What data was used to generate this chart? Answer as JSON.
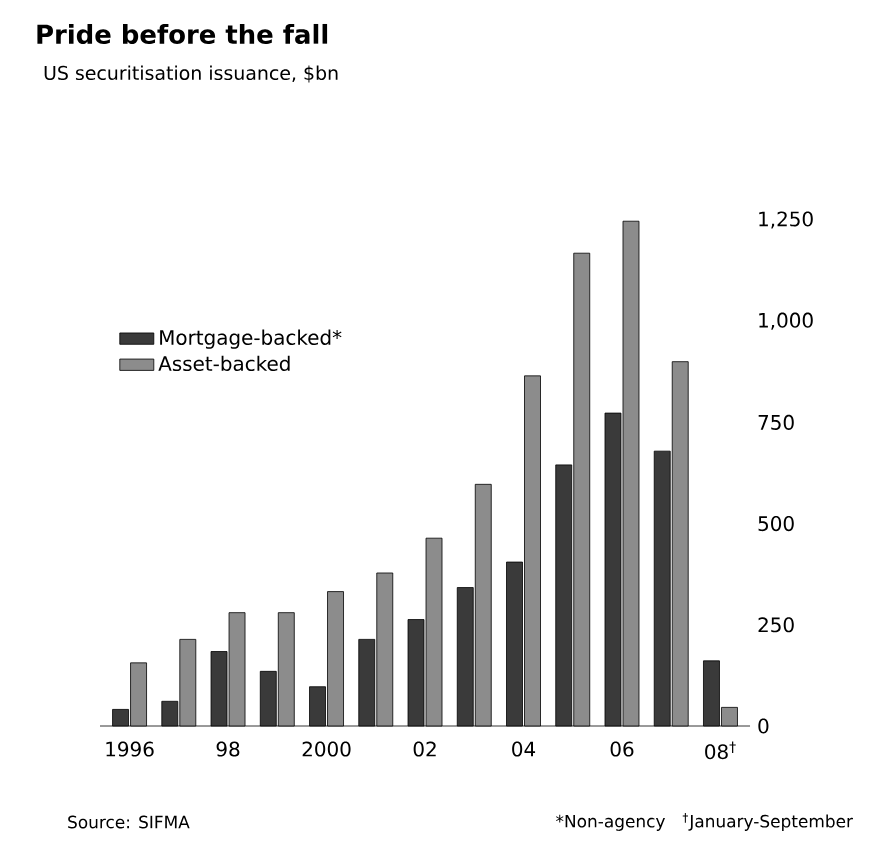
{
  "chart_data": {
    "type": "bar",
    "title": "Pride before the fall",
    "subtitle": "US securitisation issuance, $bn",
    "categories": [
      "1996",
      null,
      "98",
      null,
      "2000",
      null,
      "02",
      null,
      "04",
      null,
      "06",
      null,
      "08$^{†}$"
    ],
    "series": [
      {
        "name": "Mortgage-backed*",
        "color": "#3a3a3a",
        "values": [
          41,
          61,
          184,
          135,
          97,
          214,
          263,
          342,
          405,
          645,
          773,
          679,
          161
        ]
      },
      {
        "name": "Asset-backed",
        "color": "#8c8c8c",
        "values": [
          156,
          214,
          280,
          280,
          332,
          378,
          464,
          597,
          865,
          1168,
          1247,
          900,
          46
        ]
      }
    ],
    "ylim": [
      0,
      1250
    ],
    "yticks": [
      0,
      250,
      500,
      750,
      {
        "value": 1000,
        "label": "1,000"
      },
      {
        "value": 1250,
        "label": "1,250"
      }
    ],
    "legend": "top left",
    "grid": false,
    "annotations": [
      "Source: SIFMA",
      "*Non-agency",
      "$^{†}$January-September"
    ]
  }
}
